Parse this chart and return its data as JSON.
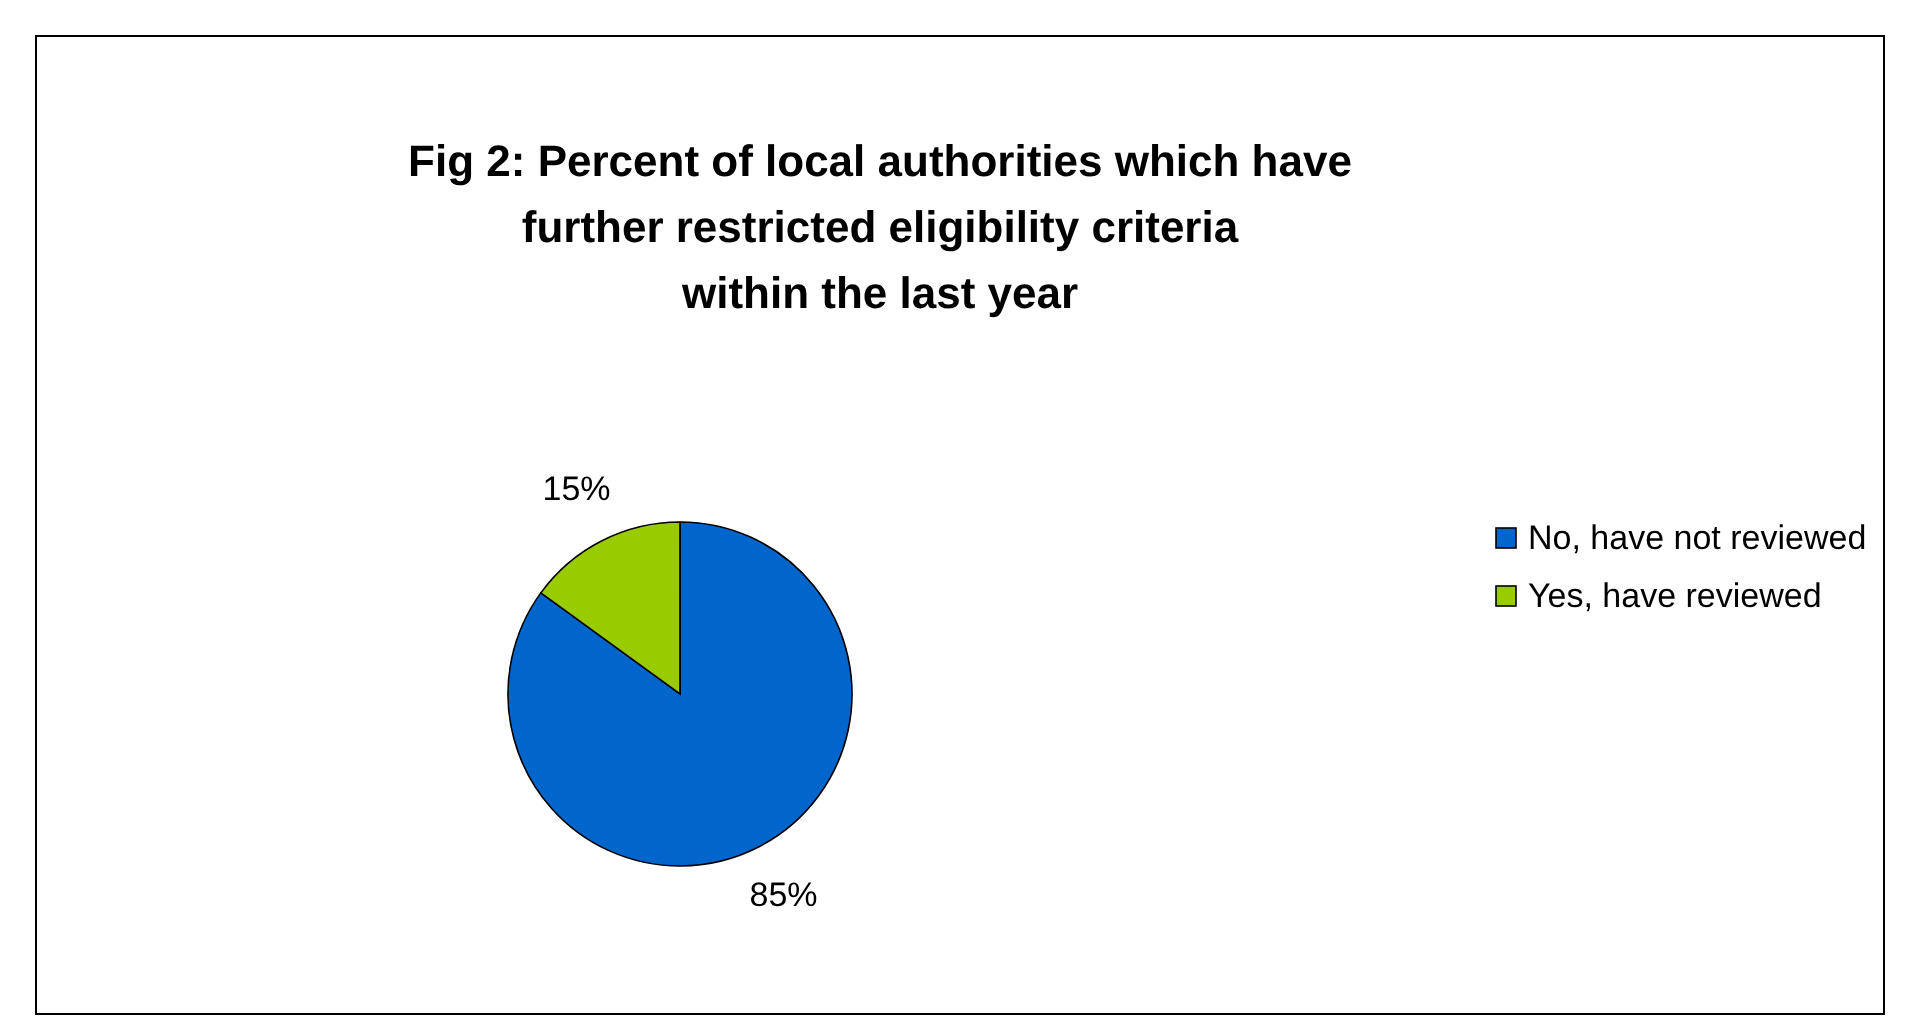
{
  "chart_data": {
    "type": "pie",
    "title": "Fig 2: Percent of local authorities which have\nfurther restricted eligibility criteria\nwithin the last year",
    "categories": [
      "No, have not reviewed",
      "Yes, have reviewed"
    ],
    "values": [
      85,
      15
    ],
    "colors": [
      "#0066cc",
      "#99cc00"
    ],
    "value_labels": [
      "85%",
      "15%"
    ],
    "legend": "right"
  }
}
